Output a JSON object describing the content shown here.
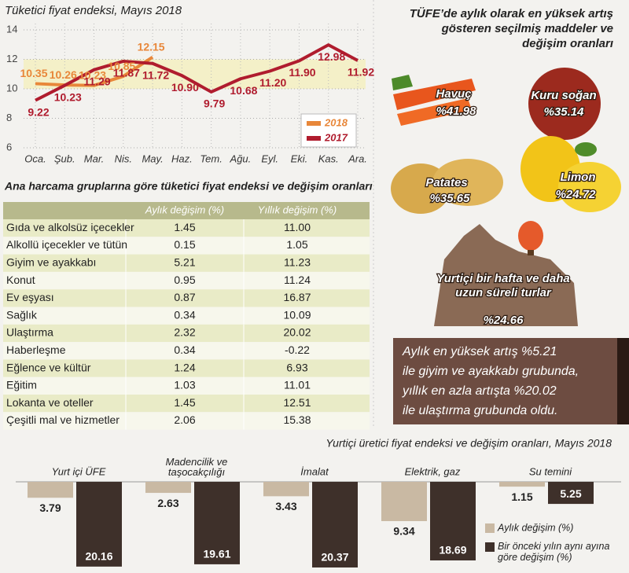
{
  "chart_data": [
    {
      "type": "line",
      "title": "Tüketici fiyat endeksi, Mayıs 2018",
      "categories": [
        "Oca.",
        "Şub.",
        "Mar.",
        "Nis.",
        "May.",
        "Haz.",
        "Tem.",
        "Ağu.",
        "Eyl.",
        "Eki.",
        "Kas.",
        "Ara."
      ],
      "series": [
        {
          "name": "2018",
          "color": "#e8873a",
          "values": [
            10.35,
            10.26,
            10.23,
            10.85,
            12.15,
            null,
            null,
            null,
            null,
            null,
            null,
            null
          ],
          "value_labels": [
            "10.35",
            "10.26",
            "10.23",
            "10.85",
            "12.15",
            null,
            null,
            null,
            null,
            null,
            null,
            null
          ]
        },
        {
          "name": "2017",
          "color": "#b01c2e",
          "values": [
            9.22,
            10.23,
            11.29,
            11.87,
            11.72,
            10.9,
            9.79,
            10.68,
            11.2,
            11.9,
            12.98,
            11.92
          ],
          "value_labels": [
            "9.22",
            "10.23",
            "11.29",
            "11.87",
            "11.72",
            "10.90",
            "9.79",
            "10.68",
            "11.20",
            "11.90",
            "12.98",
            "11.92"
          ]
        }
      ],
      "ylim": [
        6,
        14
      ],
      "yticks": [
        6,
        8,
        10,
        12,
        14
      ],
      "grid": true
    },
    {
      "type": "bar",
      "title": "Yurtiçi üretici fiyat endeksi ve değişim oranları, Mayıs 2018",
      "categories": [
        "Yurt içi ÜFE",
        "Madencilik ve\ntaşocakçılığı",
        "İmalat",
        "Elektrik, gaz",
        "Su temini"
      ],
      "series": [
        {
          "name": "Aylık değişim (%)",
          "color": "#c9b9a3",
          "values": [
            3.79,
            2.63,
            3.43,
            9.34,
            1.15
          ]
        },
        {
          "name": "Bir önceki yılın aynı ayına\ngöre değişim (%)",
          "color": "#3e302a",
          "values": [
            20.16,
            19.61,
            20.37,
            18.69,
            5.25
          ]
        }
      ]
    }
  ],
  "table": {
    "title": "Ana harcama gruplarına göre tüketici fiyat endeksi ve değişim oranları",
    "header": [
      "Aylık değişim (%)",
      "Yıllık değişim (%)"
    ],
    "rows": [
      [
        "Gıda ve alkolsüz içecekler",
        "1.45",
        "11.00"
      ],
      [
        "Alkollü içecekler ve tütün",
        "0.15",
        "1.05"
      ],
      [
        "Giyim ve ayakkabı",
        "5.21",
        "11.23"
      ],
      [
        "Konut",
        "0.95",
        "11.24"
      ],
      [
        "Ev eşyası",
        "0.87",
        "16.87"
      ],
      [
        "Sağlık",
        "0.34",
        "10.09"
      ],
      [
        "Ulaştırma",
        "2.32",
        "20.02"
      ],
      [
        "Haberleşme",
        "0.34",
        "-0.22"
      ],
      [
        "Eğlence ve kültür",
        "1.24",
        "6.93"
      ],
      [
        "Eğitim",
        "1.03",
        "11.01"
      ],
      [
        "Lokanta ve oteller",
        "1.45",
        "12.51"
      ],
      [
        "Çeşitli mal ve hizmetler",
        "2.06",
        "15.38"
      ]
    ]
  },
  "items": {
    "title": "TÜFE’de aylık olarak en yüksek artış\ngösteren seçilmiş maddeler ve\ndeğişim oranları",
    "list": [
      {
        "name": "Havuç",
        "value": "%41.98"
      },
      {
        "name": "Kuru soğan",
        "value": "%35.14"
      },
      {
        "name": "Patates",
        "value": "%35.65"
      },
      {
        "name": "Limon",
        "value": "%24.72"
      },
      {
        "name": "Yurtiçi bir hafta ve daha\nuzun süreli turlar",
        "value": "%24.66"
      }
    ]
  },
  "note": "Aylık en yüksek artış %5.21\nile giyim ve ayakkabı grubunda,\nyıllık en azla artışta %20.02\nile ulaştırma grubunda oldu."
}
